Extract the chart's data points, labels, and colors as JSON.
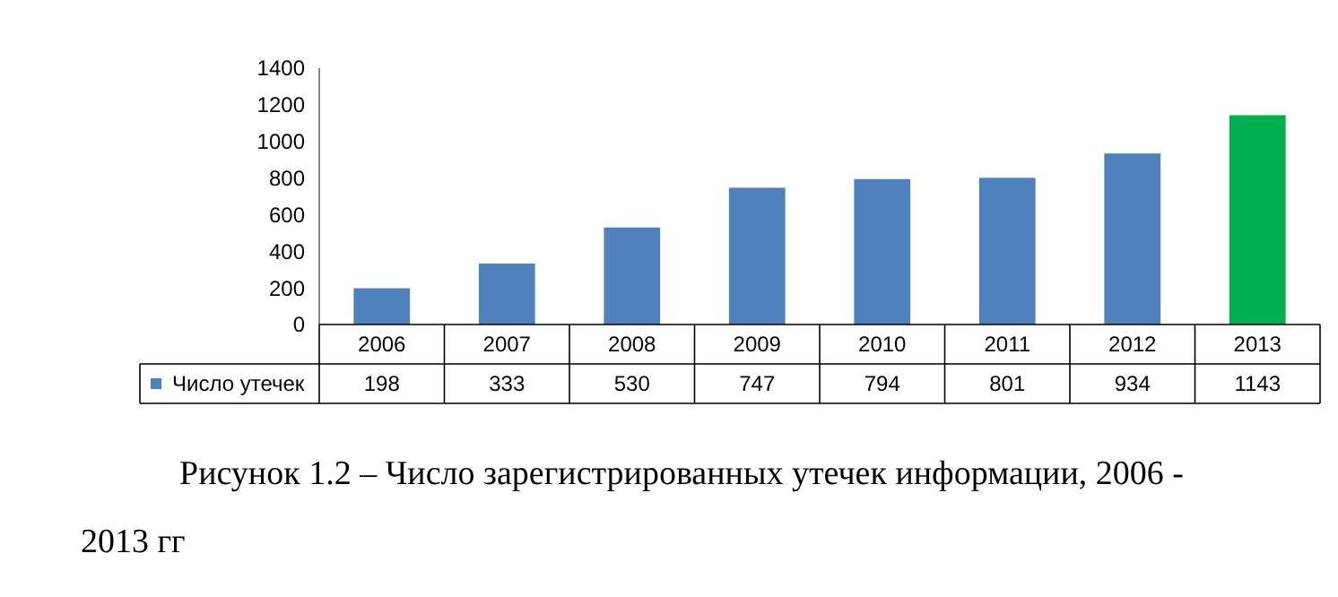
{
  "chart_data": {
    "type": "bar",
    "categories": [
      "2006",
      "2007",
      "2008",
      "2009",
      "2010",
      "2011",
      "2012",
      "2013"
    ],
    "series": [
      {
        "name": "Число утечек",
        "color": "#4f81bd",
        "colors": [
          "#4f81bd",
          "#4f81bd",
          "#4f81bd",
          "#4f81bd",
          "#4f81bd",
          "#4f81bd",
          "#4f81bd",
          "#00b050"
        ],
        "values": [
          198,
          333,
          530,
          747,
          794,
          801,
          934,
          1143
        ]
      }
    ],
    "ylim": [
      0,
      1400
    ],
    "yticks": [
      0,
      200,
      400,
      600,
      800,
      1000,
      1200,
      1400
    ],
    "data_labels": true,
    "legend": "bottom left",
    "annotations": [
      "Рисунок 1.2 – Число зарегистрированных утечек информации, 2006 - 2013 гг"
    ]
  }
}
